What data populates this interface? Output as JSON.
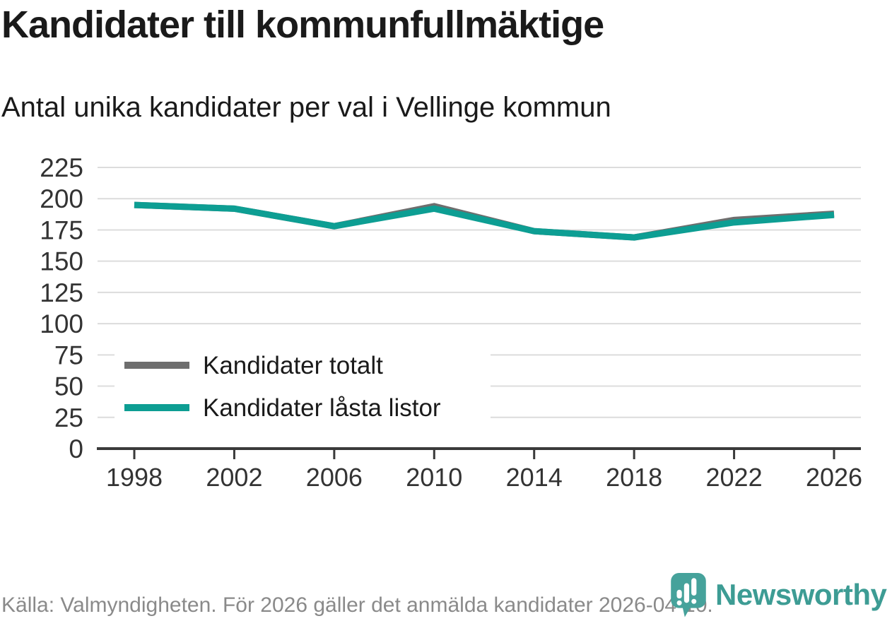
{
  "header": {
    "title": "Kandidater till kommunfullmäktige",
    "subtitle": "Antal unika kandidater per val i Vellinge kommun"
  },
  "chart_data": {
    "type": "line",
    "title": "Kandidater till kommunfullmäktige",
    "subtitle": "Antal unika kandidater per val i Vellinge kommun",
    "categories": [
      "1998",
      "2002",
      "2006",
      "2010",
      "2014",
      "2018",
      "2022",
      "2026"
    ],
    "series": [
      {
        "name": "Kandidater totalt",
        "color": "#6e6e6e",
        "values": [
          195,
          192,
          178,
          194,
          174,
          169,
          183,
          188
        ]
      },
      {
        "name": "Kandidater låsta listor",
        "color": "#0d9e93",
        "values": [
          195,
          192,
          178,
          192,
          174,
          169,
          181,
          187
        ]
      }
    ],
    "xlabel": "",
    "ylabel": "",
    "ylim": [
      0,
      225
    ],
    "yticks": [
      0,
      25,
      50,
      75,
      100,
      125,
      150,
      175,
      200,
      225
    ],
    "grid": true,
    "legend_position": "inside bottom-left",
    "axis_color": "#3a3a3a",
    "grid_color": "#dcdcdc",
    "tick_label_color": "#333333",
    "legend_text_color": "#1a1a1a"
  },
  "footer": {
    "source": "Källa: Valmyndigheten. För 2026 gäller det anmälda kandidater 2026-04-10."
  },
  "branding": {
    "wordmark": "Newsworthy",
    "brand_color": "#3d9c94",
    "icon": "newsworthy-speech-bubble-barchart-icon"
  }
}
